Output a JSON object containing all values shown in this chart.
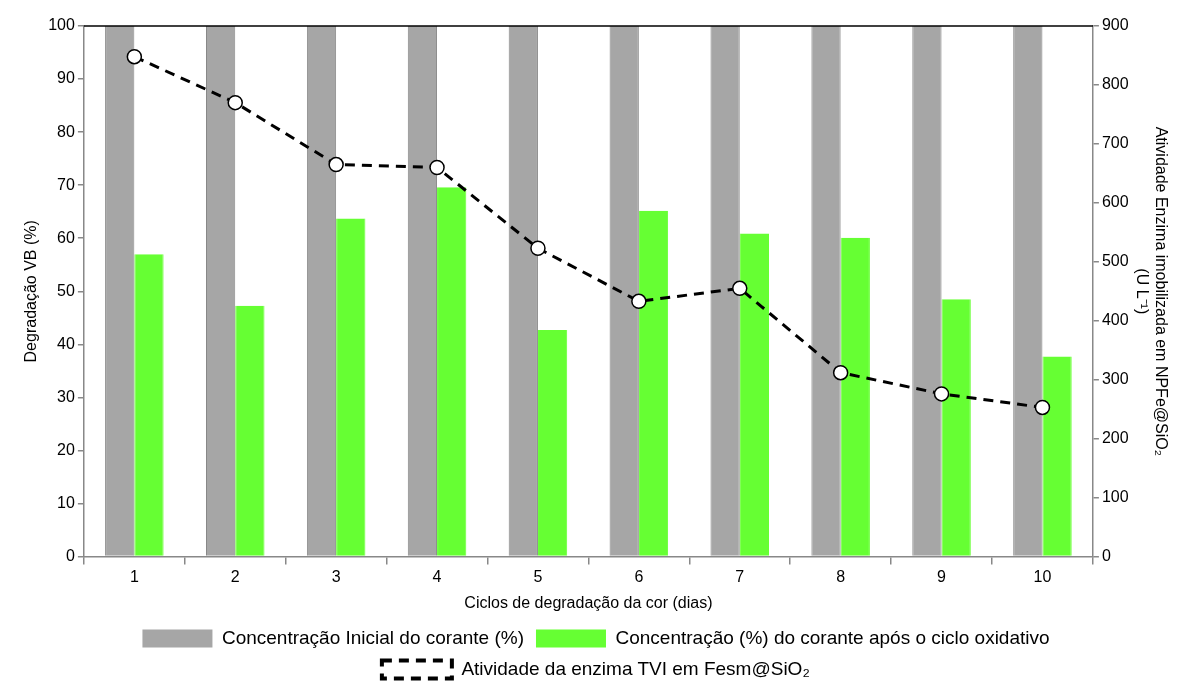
{
  "chart_data": {
    "type": "bar",
    "xlabel": "Ciclos de degradação da cor (dias)",
    "ylabel": "Degradação VB (%)",
    "y2label": "Atividade Enzima imobilizada em NPFe@SiO₂\n(U L⁻¹)",
    "categories": [
      "1",
      "2",
      "3",
      "4",
      "5",
      "6",
      "7",
      "8",
      "9",
      "10"
    ],
    "series": [
      {
        "name": "Concentração Inicial do corante (%)",
        "color": "#a6a6a6",
        "values": [
          100,
          100,
          100,
          100,
          100,
          100,
          100,
          100,
          100,
          100
        ]
      },
      {
        "name": "Concentração (%) do corante após o ciclo oxidativo",
        "color": "#66ff33",
        "values": [
          57,
          47.3,
          63.7,
          69.6,
          42.7,
          65.2,
          60.9,
          60.1,
          48.5,
          37.7
        ]
      },
      {
        "name": "Atividade da enzima TVI em Fesm@SiO₂",
        "type": "line",
        "axis": "y2",
        "color": "#000000",
        "line_style": "dashed",
        "marker": "circle",
        "values": [
          848,
          770,
          665,
          660,
          523,
          433,
          455,
          312,
          276,
          253
        ]
      }
    ],
    "ylim": [
      0,
      100
    ],
    "yticks": [
      0,
      10,
      20,
      30,
      40,
      50,
      60,
      70,
      80,
      90,
      100
    ],
    "y2lim": [
      0,
      900
    ],
    "y2ticks": [
      0,
      100,
      200,
      300,
      400,
      500,
      600,
      700,
      800,
      900
    ],
    "grid": false,
    "legend": "bottom"
  }
}
